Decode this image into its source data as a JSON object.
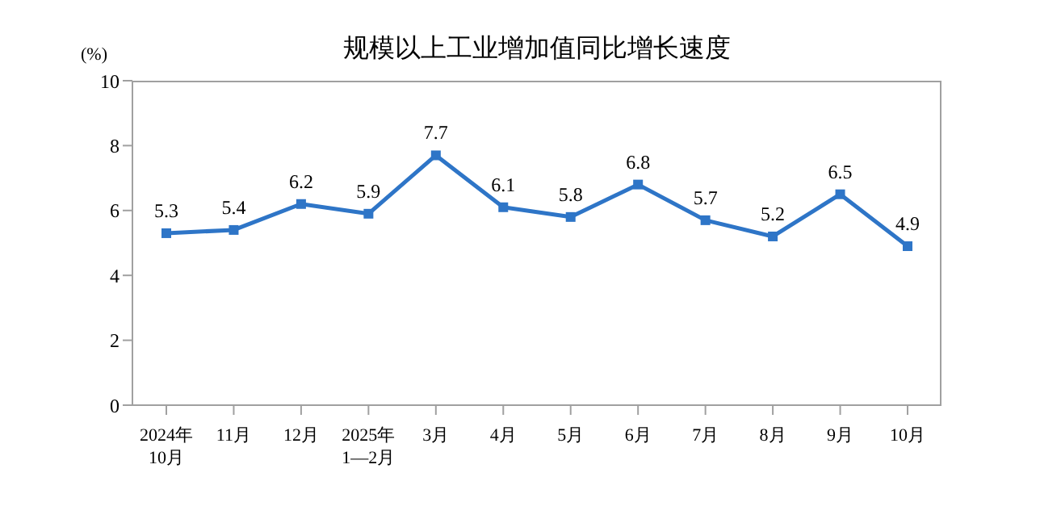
{
  "chart_data": {
    "type": "line",
    "title": "规模以上工业增加值同比增长速度",
    "ylabel": "(%)",
    "categories": [
      "2024年\n10月",
      "11月",
      "12月",
      "2025年\n1—2月",
      "3月",
      "4月",
      "5月",
      "6月",
      "7月",
      "8月",
      "9月",
      "10月"
    ],
    "series": [
      {
        "color": "#2e75c7",
        "values": [
          5.3,
          5.4,
          6.2,
          5.9,
          7.7,
          6.1,
          5.8,
          6.8,
          5.7,
          5.2,
          6.5,
          4.9
        ]
      }
    ],
    "ylim": [
      0,
      10
    ],
    "yticks": [
      0,
      2,
      4,
      6,
      8,
      10
    ],
    "marker": "square",
    "line_style": "solid",
    "data_labels": true
  }
}
